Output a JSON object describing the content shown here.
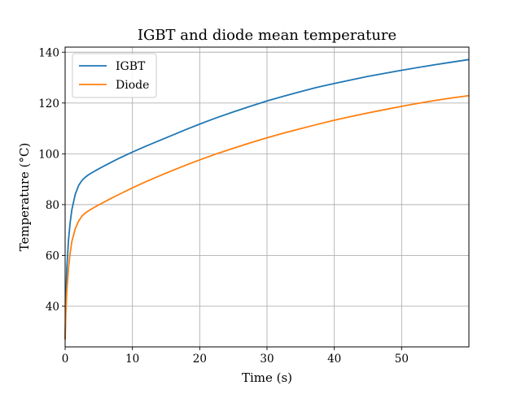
{
  "chart_data": {
    "type": "line",
    "title": "IGBT and diode mean temperature",
    "xlabel": "Time (s)",
    "ylabel": "Temperature (°C)",
    "xlim": [
      0,
      60
    ],
    "ylim": [
      24,
      142
    ],
    "x_ticks": [
      0,
      10,
      20,
      30,
      40,
      50
    ],
    "y_ticks": [
      40,
      60,
      80,
      100,
      120,
      140
    ],
    "grid": true,
    "legend_position": "top-left",
    "series": [
      {
        "name": "IGBT",
        "color": "#1f77b4",
        "x": [
          0,
          0.1,
          0.25,
          0.5,
          0.75,
          1,
          1.5,
          2,
          2.5,
          3,
          3.5,
          4,
          5,
          6,
          7,
          8,
          10,
          12,
          14,
          16,
          18,
          20,
          22.5,
          25,
          27.5,
          30,
          32.5,
          35,
          37.5,
          40,
          42.5,
          45,
          47.5,
          50,
          52.5,
          55,
          57.5,
          60
        ],
        "y": [
          27,
          42,
          55,
          66,
          73,
          78,
          84,
          87.5,
          89.5,
          90.8,
          91.8,
          92.6,
          94.1,
          95.5,
          96.9,
          98.2,
          100.7,
          103,
          105.2,
          107.4,
          109.6,
          111.7,
          114.2,
          116.5,
          118.7,
          120.8,
          122.7,
          124.5,
          126.2,
          127.7,
          129.1,
          130.5,
          131.7,
          132.9,
          134,
          135.1,
          136.1,
          137.1
        ]
      },
      {
        "name": "Diode",
        "color": "#ff7f0e",
        "x": [
          0,
          0.1,
          0.25,
          0.5,
          0.75,
          1,
          1.5,
          2,
          2.5,
          3,
          3.5,
          4,
          5,
          6,
          7,
          8,
          10,
          12,
          14,
          16,
          18,
          20,
          22.5,
          25,
          27.5,
          30,
          32.5,
          35,
          37.5,
          40,
          42.5,
          45,
          47.5,
          50,
          52.5,
          55,
          57.5,
          60
        ],
        "y": [
          27,
          37,
          46,
          55,
          61,
          65.5,
          70.5,
          73.5,
          75.5,
          76.7,
          77.6,
          78.4,
          79.9,
          81.3,
          82.7,
          84,
          86.6,
          89,
          91.3,
          93.5,
          95.6,
          97.6,
          100,
          102.2,
          104.3,
          106.3,
          108.2,
          109.9,
          111.6,
          113.2,
          114.7,
          116.1,
          117.4,
          118.7,
          119.9,
          121,
          122,
          122.9
        ]
      }
    ]
  }
}
